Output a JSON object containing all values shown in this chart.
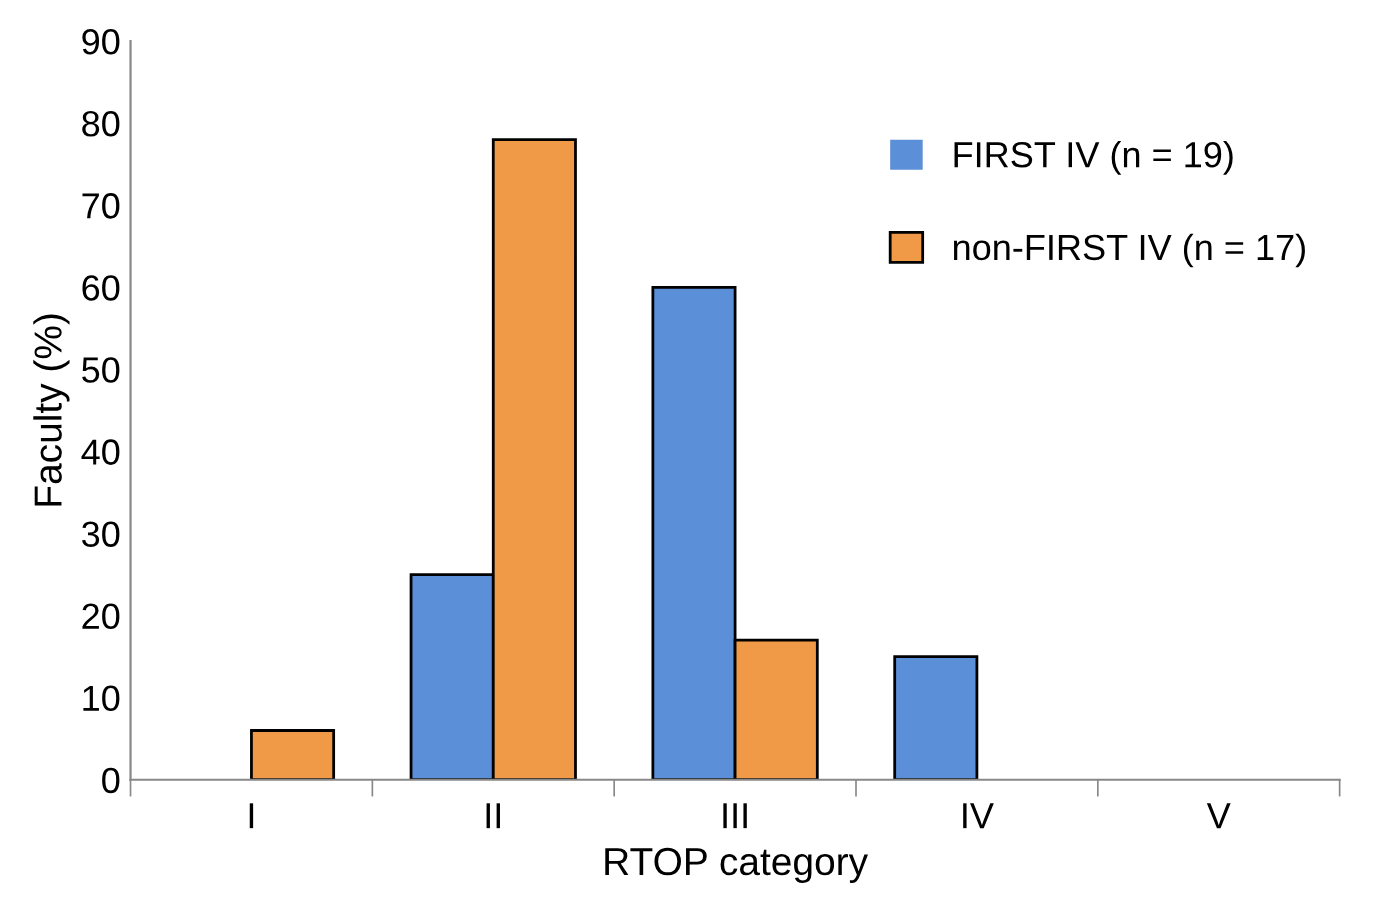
{
  "chart_data": {
    "type": "bar",
    "xlabel": "RTOP category",
    "ylabel": "Faculty (%)",
    "categories": [
      "I",
      "II",
      "III",
      "IV",
      "V"
    ],
    "series": [
      {
        "name": "FIRST IV (n = 19)",
        "color": "#5b8fd8",
        "values": [
          0,
          25,
          60,
          15,
          0
        ]
      },
      {
        "name": "non-FIRST IV (n = 17)",
        "color": "#f09a48",
        "values": [
          6,
          78,
          17,
          0,
          0
        ]
      }
    ],
    "ylim": [
      0,
      90
    ],
    "yticks": [
      0,
      10,
      20,
      30,
      40,
      50,
      60,
      70,
      80,
      90
    ],
    "grid": false,
    "legend": "right"
  }
}
